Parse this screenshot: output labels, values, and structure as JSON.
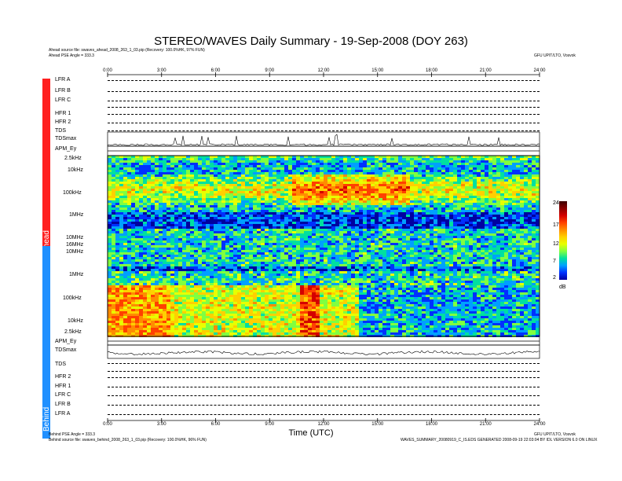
{
  "header": {
    "title": "STEREO/WAVES Daily Summary - 19-Sep-2008 (DOY 263)",
    "ahead_source": "Ahead source file: swaves_ahead_2008_263_1_03.pip (Recovery: 100.0%HK, 97% FUN)",
    "ahead_angle": "Ahead PSE Angle = 333.3",
    "org": "GFU UPIT/LTO, Vosvok"
  },
  "footer": {
    "behind_angle": "Behind PSE Angle = 333.3",
    "behind_source": "Behind source file: swaves_behind_2008_263_1_03.pip (Recovery: 100.0%HK, 96% FUN)",
    "org": "GFU UPIT/LTO, Vosvok",
    "credit": "WAVES_SUMMARY_20080919_C_IS.EDS GENERATED 2008-09-19 22:03:04 BY IDL VERSION 6.0 ON LINUX",
    "xlabel": "Time (UTC)"
  },
  "sidebar": {
    "ahead_label": "Ahead",
    "behind_label": "Behind",
    "ahead_color": "#ff2020",
    "behind_color": "#2090ff"
  },
  "ahead_panels": [
    "LFR A",
    "LFR B",
    "LFR C",
    "HFR 1",
    "HFR 2",
    "TDS",
    "TDSmax",
    "APM_Ey"
  ],
  "behind_panels": [
    "APM_Ey",
    "TDSmax",
    "TDS",
    "HFR 2",
    "HFR 1",
    "LFR C",
    "LFR B",
    "LFR A"
  ],
  "freq_ticks_ahead": [
    "2.5kHz",
    "10kHz",
    "100kHz",
    "1MHz",
    "10MHz"
  ],
  "freq_ticks_mid": [
    "16MHz",
    "10MHz"
  ],
  "freq_ticks_behind": [
    "1MHz",
    "100kHz",
    "10kHz",
    "2.5kHz"
  ],
  "colorbar": {
    "ticks": [
      "24",
      "17",
      "12",
      "7",
      "2"
    ],
    "unit": "dB"
  },
  "chart_data": {
    "type": "heatmap",
    "title": "STEREO/WAVES Daily Summary - 19-Sep-2008 (DOY 263)",
    "xlabel": "Time (UTC)",
    "x_ticks": [
      "0:00",
      "3:00",
      "6:00",
      "9:00",
      "12:00",
      "15:00",
      "18:00",
      "21:00",
      "24:00"
    ],
    "xlim": [
      "0:00",
      "24:00"
    ],
    "ylim": [
      "2.5kHz",
      "16MHz"
    ],
    "colorbar_range_dB": [
      2,
      24
    ],
    "series": [
      {
        "name": "Ahead",
        "y_ticks": [
          "2.5kHz",
          "10kHz",
          "100kHz",
          "1MHz",
          "10MHz",
          "16MHz"
        ]
      },
      {
        "name": "Behind",
        "y_ticks": [
          "10MHz",
          "1MHz",
          "100kHz",
          "10kHz",
          "2.5kHz"
        ]
      }
    ]
  }
}
